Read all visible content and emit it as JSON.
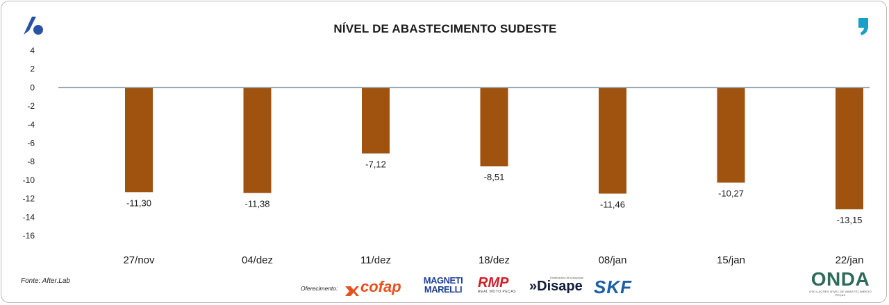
{
  "title": "NÍVEL DE ABASTECIMENTO SUDESTE",
  "source": "Fonte: After.Lab",
  "sponsors": {
    "label": "Oferecimento:",
    "cofap": "cofap",
    "magneti": "MAGNETI MARELLI",
    "rmp": "RMP",
    "rmp_tag": "REAL MOTO PEÇAS",
    "disape": "»Disape",
    "disape_tag": "Distribuidora de Autopeças",
    "skf": "SKF"
  },
  "onda": {
    "name": "ONDA",
    "tagline": "OSCILAÇÕES NÍVEL DE ABASTECIMENTO PEÇAS"
  },
  "colors": {
    "bar": "#a0520f",
    "axis": "#8c96a0",
    "text": "#1a1a1a",
    "brand_blue": "#2653a6",
    "quote_teal": "#1aa0c8"
  },
  "chart_data": {
    "type": "bar",
    "title": "NÍVEL DE ABASTECIMENTO SUDESTE",
    "categories": [
      "27/nov",
      "04/dez",
      "11/dez",
      "18/dez",
      "08/jan",
      "15/jan",
      "22/jan"
    ],
    "values": [
      -11.3,
      -11.38,
      -7.12,
      -8.51,
      -11.46,
      -10.27,
      -13.15
    ],
    "value_labels": [
      "-11,30",
      "-11,38",
      "-7,12",
      "-8,51",
      "-11,46",
      "-10,27",
      "-13,15"
    ],
    "ylim": [
      -16,
      4
    ],
    "yticks": [
      4,
      2,
      0,
      -2,
      -4,
      -6,
      -8,
      -10,
      -12,
      -14,
      -16
    ],
    "grid": false,
    "legend": "none"
  }
}
